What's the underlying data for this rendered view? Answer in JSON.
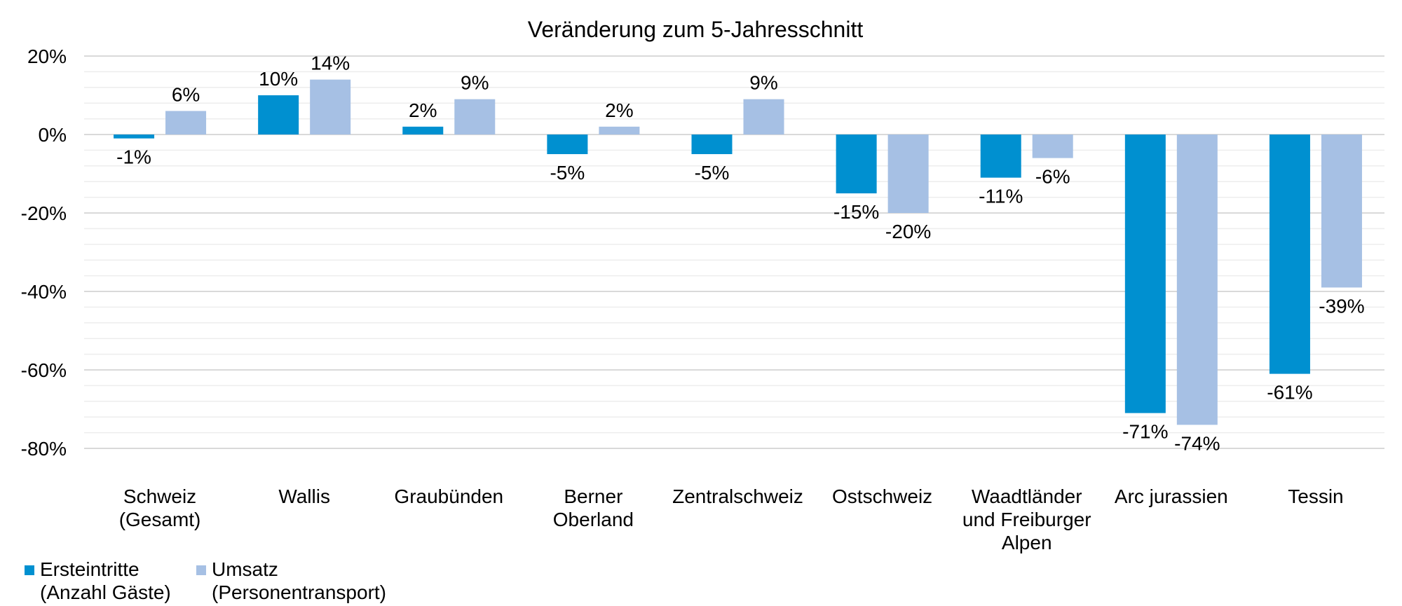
{
  "chart_data": {
    "type": "bar",
    "title": "Veränderung zum 5-Jahresschnitt",
    "categories": [
      [
        "Schweiz",
        "(Gesamt)"
      ],
      [
        "Wallis"
      ],
      [
        "Graubünden"
      ],
      [
        "Berner",
        "Oberland"
      ],
      [
        "Zentralschweiz"
      ],
      [
        "Ostschweiz"
      ],
      [
        "Waadtländer",
        "und Freiburger",
        "Alpen"
      ],
      [
        "Arc jurassien"
      ],
      [
        "Tessin"
      ]
    ],
    "series": [
      {
        "name": [
          "Ersteintritte",
          "(Anzahl Gäste)"
        ],
        "color": "#0090D0",
        "values": [
          -1,
          10,
          2,
          -5,
          -5,
          -15,
          -11,
          -71,
          -61
        ],
        "labels": [
          "-1%",
          "10%",
          "2%",
          "-5%",
          "-5%",
          "-15%",
          "-11%",
          "-71%",
          "-61%"
        ]
      },
      {
        "name": [
          "Umsatz",
          "(Personentransport)"
        ],
        "color": "#A6C0E4",
        "values": [
          6,
          14,
          9,
          2,
          9,
          -20,
          -6,
          -74,
          -39
        ],
        "labels": [
          "6%",
          "14%",
          "9%",
          "2%",
          "9%",
          "-20%",
          "-6%",
          "-74%",
          "-39%"
        ]
      }
    ],
    "ylim": [
      -80,
      20
    ],
    "yticks": [
      20,
      0,
      -20,
      -40,
      -60,
      -80
    ],
    "ytick_labels": [
      "20%",
      "0%",
      "-20%",
      "-40%",
      "-60%",
      "-80%"
    ],
    "grid": true,
    "legend": "bottom-left"
  }
}
